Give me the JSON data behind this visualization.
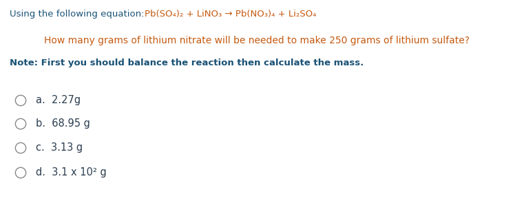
{
  "background_color": "#ffffff",
  "line1_prefix": "Using the following equation:  ",
  "line1_equation": "Pb(SO₄)₂ + LiNO₃ → Pb(NO₃)₄ + Li₂SO₄",
  "line2": "How many grams of lithium nitrate will be needed to make 250 grams of lithium sulfate?",
  "line3_note": "Note: First you should balance the reaction then calculate the mass.",
  "options": [
    "a.  2.27g",
    "b.  68.95 g",
    "c.  3.13 g",
    "d.  3.1 x 10² g"
  ],
  "color_blue": "#1A5276",
  "color_orange": "#C0392B",
  "color_dark": "#2C3E50",
  "color_gray": "#555555",
  "font_size_eq": 9.5,
  "font_size_q": 10.0,
  "font_size_note": 9.5,
  "font_size_opt": 10.5
}
